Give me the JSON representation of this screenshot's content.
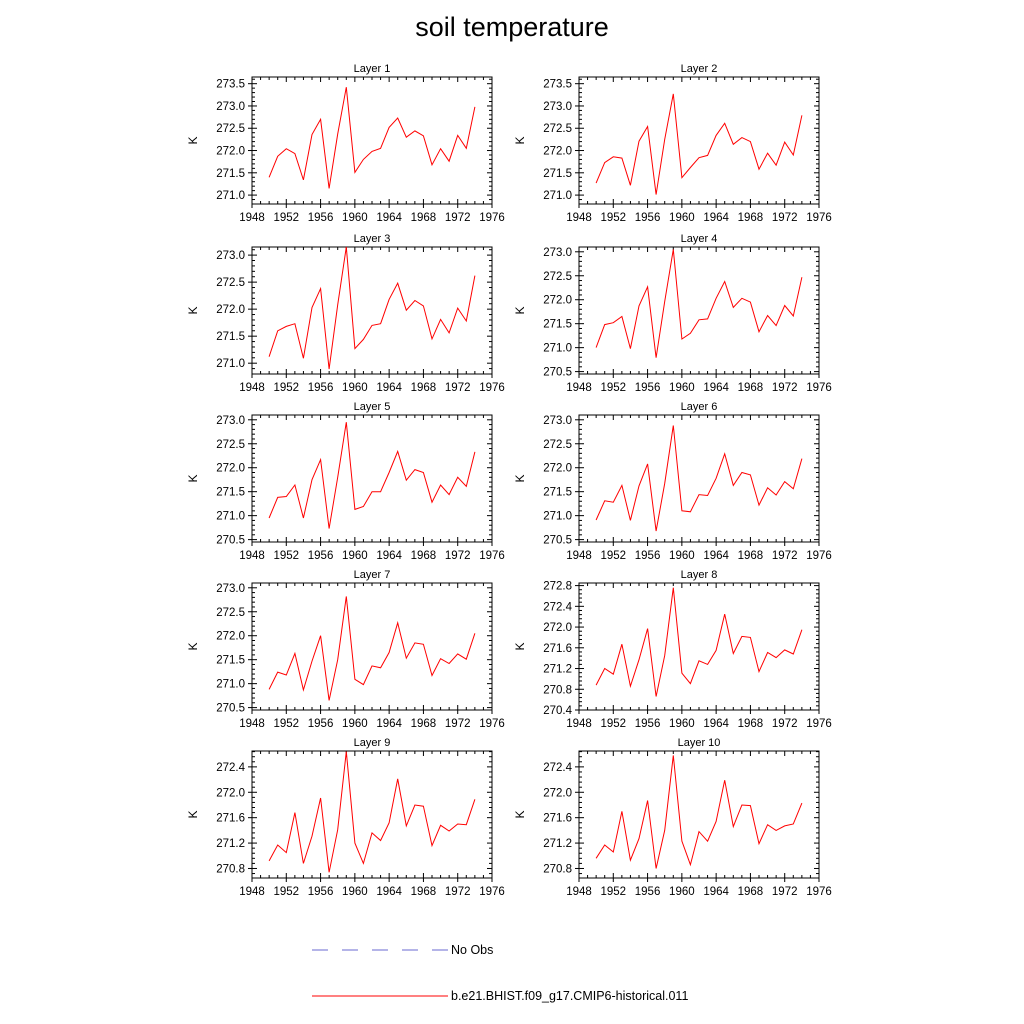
{
  "title": "soil temperature",
  "legend": [
    {
      "label": "No Obs",
      "color": "#6a6ad0",
      "style": "dashed"
    },
    {
      "label": "b.e21.BHIST.f09_g17.CMIP6-historical.011",
      "color": "#ff0000",
      "style": "solid"
    }
  ],
  "chart_data": [
    {
      "type": "line",
      "title": "Layer 1",
      "ylabel": "K",
      "xlim": [
        1948,
        1976
      ],
      "ylim": [
        270.8,
        273.65
      ],
      "xticks": [
        "1948",
        "1952",
        "1956",
        "1960",
        "1964",
        "1968",
        "1972",
        "1976"
      ],
      "yticks": [
        "271.0",
        "271.5",
        "272.0",
        "272.5",
        "273.0",
        "273.5"
      ],
      "series": [
        {
          "x": [
            1950,
            1951,
            1952,
            1953,
            1954,
            1955,
            1956,
            1957,
            1958,
            1959,
            1960,
            1961,
            1962,
            1963,
            1964,
            1965,
            1966,
            1967,
            1968,
            1969,
            1970,
            1971,
            1972,
            1973,
            1974
          ],
          "y": [
            271.4,
            271.87,
            272.04,
            271.93,
            271.34,
            272.36,
            272.7,
            271.15,
            272.37,
            273.42,
            271.51,
            271.8,
            271.98,
            272.05,
            272.52,
            272.73,
            272.3,
            272.44,
            272.33,
            271.68,
            272.04,
            271.76,
            272.34,
            272.05,
            272.98
          ]
        }
      ]
    },
    {
      "type": "line",
      "title": "Layer 2",
      "ylabel": "K",
      "xlim": [
        1948,
        1976
      ],
      "ylim": [
        270.8,
        273.65
      ],
      "xticks": [
        "1948",
        "1952",
        "1956",
        "1960",
        "1964",
        "1968",
        "1972",
        "1976"
      ],
      "yticks": [
        "271.0",
        "271.5",
        "272.0",
        "272.5",
        "273.0",
        "273.5"
      ],
      "series": [
        {
          "x": [
            1950,
            1951,
            1952,
            1953,
            1954,
            1955,
            1956,
            1957,
            1958,
            1959,
            1960,
            1961,
            1962,
            1963,
            1964,
            1965,
            1966,
            1967,
            1968,
            1969,
            1970,
            1971,
            1972,
            1973,
            1974
          ],
          "y": [
            271.27,
            271.73,
            271.86,
            271.83,
            271.22,
            272.21,
            272.54,
            271.01,
            272.25,
            273.27,
            271.39,
            271.62,
            271.84,
            271.89,
            272.34,
            272.61,
            272.14,
            272.29,
            272.2,
            271.58,
            271.94,
            271.67,
            272.19,
            271.9,
            272.79
          ]
        }
      ]
    },
    {
      "type": "line",
      "title": "Layer 3",
      "ylabel": "K",
      "xlim": [
        1948,
        1976
      ],
      "ylim": [
        270.8,
        273.15
      ],
      "xticks": [
        "1948",
        "1952",
        "1956",
        "1960",
        "1964",
        "1968",
        "1972",
        "1976"
      ],
      "yticks": [
        "271.0",
        "271.5",
        "272.0",
        "272.5",
        "273.0"
      ],
      "series": [
        {
          "x": [
            1950,
            1951,
            1952,
            1953,
            1954,
            1955,
            1956,
            1957,
            1958,
            1959,
            1960,
            1961,
            1962,
            1963,
            1964,
            1965,
            1966,
            1967,
            1968,
            1969,
            1970,
            1971,
            1972,
            1973,
            1974
          ],
          "y": [
            271.12,
            271.6,
            271.68,
            271.73,
            271.09,
            272.03,
            272.38,
            270.89,
            272.08,
            273.15,
            271.27,
            271.44,
            271.7,
            271.73,
            272.18,
            272.48,
            271.98,
            272.16,
            272.06,
            271.45,
            271.81,
            271.56,
            272.02,
            271.78,
            272.62
          ]
        }
      ]
    },
    {
      "type": "line",
      "title": "Layer 4",
      "ylabel": "K",
      "xlim": [
        1948,
        1976
      ],
      "ylim": [
        270.45,
        273.1
      ],
      "xticks": [
        "1948",
        "1952",
        "1956",
        "1960",
        "1964",
        "1968",
        "1972",
        "1976"
      ],
      "yticks": [
        "270.5",
        "271.0",
        "271.5",
        "272.0",
        "272.5",
        "273.0"
      ],
      "series": [
        {
          "x": [
            1950,
            1951,
            1952,
            1953,
            1954,
            1955,
            1956,
            1957,
            1958,
            1959,
            1960,
            1961,
            1962,
            1963,
            1964,
            1965,
            1966,
            1967,
            1968,
            1969,
            1970,
            1971,
            1972,
            1973,
            1974
          ],
          "y": [
            271.0,
            271.48,
            271.52,
            271.65,
            270.98,
            271.87,
            272.27,
            270.79,
            271.96,
            273.05,
            271.18,
            271.3,
            271.58,
            271.6,
            272.03,
            272.38,
            271.84,
            272.03,
            271.95,
            271.33,
            271.67,
            271.46,
            271.88,
            271.66,
            272.47
          ]
        }
      ]
    },
    {
      "type": "line",
      "title": "Layer 5",
      "ylabel": "K",
      "xlim": [
        1948,
        1976
      ],
      "ylim": [
        270.45,
        273.1
      ],
      "xticks": [
        "1948",
        "1952",
        "1956",
        "1960",
        "1964",
        "1968",
        "1972",
        "1976"
      ],
      "yticks": [
        "270.5",
        "271.0",
        "271.5",
        "272.0",
        "272.5",
        "273.0"
      ],
      "series": [
        {
          "x": [
            1950,
            1951,
            1952,
            1953,
            1954,
            1955,
            1956,
            1957,
            1958,
            1959,
            1960,
            1961,
            1962,
            1963,
            1964,
            1965,
            1966,
            1967,
            1968,
            1969,
            1970,
            1971,
            1972,
            1973,
            1974
          ],
          "y": [
            270.95,
            271.38,
            271.4,
            271.64,
            270.95,
            271.75,
            272.17,
            270.73,
            271.8,
            272.95,
            271.13,
            271.19,
            271.5,
            271.5,
            271.9,
            272.34,
            271.74,
            271.96,
            271.9,
            271.28,
            271.64,
            271.44,
            271.8,
            271.61,
            272.33
          ]
        }
      ]
    },
    {
      "type": "line",
      "title": "Layer 6",
      "ylabel": "K",
      "xlim": [
        1948,
        1976
      ],
      "ylim": [
        270.45,
        273.1
      ],
      "xticks": [
        "1948",
        "1952",
        "1956",
        "1960",
        "1964",
        "1968",
        "1972",
        "1976"
      ],
      "yticks": [
        "270.5",
        "271.0",
        "271.5",
        "272.0",
        "272.5",
        "273.0"
      ],
      "series": [
        {
          "x": [
            1950,
            1951,
            1952,
            1953,
            1954,
            1955,
            1956,
            1957,
            1958,
            1959,
            1960,
            1961,
            1962,
            1963,
            1964,
            1965,
            1966,
            1967,
            1968,
            1969,
            1970,
            1971,
            1972,
            1973,
            1974
          ],
          "y": [
            270.91,
            271.31,
            271.28,
            271.63,
            270.9,
            271.62,
            272.08,
            270.68,
            271.67,
            272.88,
            271.1,
            271.08,
            271.44,
            271.42,
            271.78,
            272.29,
            271.63,
            271.9,
            271.85,
            271.22,
            271.58,
            271.43,
            271.71,
            271.56,
            272.19
          ]
        }
      ]
    },
    {
      "type": "line",
      "title": "Layer 7",
      "ylabel": "K",
      "xlim": [
        1948,
        1976
      ],
      "ylim": [
        270.45,
        273.1
      ],
      "xticks": [
        "1948",
        "1952",
        "1956",
        "1960",
        "1964",
        "1968",
        "1972",
        "1976"
      ],
      "yticks": [
        "270.5",
        "271.0",
        "271.5",
        "272.0",
        "272.5",
        "273.0"
      ],
      "series": [
        {
          "x": [
            1950,
            1951,
            1952,
            1953,
            1954,
            1955,
            1956,
            1957,
            1958,
            1959,
            1960,
            1961,
            1962,
            1963,
            1964,
            1965,
            1966,
            1967,
            1968,
            1969,
            1970,
            1971,
            1972,
            1973,
            1974
          ],
          "y": [
            270.88,
            271.24,
            271.18,
            271.63,
            270.87,
            271.47,
            272.0,
            270.65,
            271.5,
            272.82,
            271.09,
            270.98,
            271.37,
            271.33,
            271.65,
            272.27,
            271.53,
            271.85,
            271.82,
            271.17,
            271.52,
            271.42,
            271.62,
            271.51,
            272.05
          ]
        }
      ]
    },
    {
      "type": "line",
      "title": "Layer 8",
      "ylabel": "K",
      "xlim": [
        1948,
        1976
      ],
      "ylim": [
        270.4,
        272.85
      ],
      "xticks": [
        "1948",
        "1952",
        "1956",
        "1960",
        "1964",
        "1968",
        "1972",
        "1976"
      ],
      "yticks": [
        "270.4",
        "270.8",
        "271.2",
        "271.6",
        "272.0",
        "272.4",
        "272.8"
      ],
      "series": [
        {
          "x": [
            1950,
            1951,
            1952,
            1953,
            1954,
            1955,
            1956,
            1957,
            1958,
            1959,
            1960,
            1961,
            1962,
            1963,
            1964,
            1965,
            1966,
            1967,
            1968,
            1969,
            1970,
            1971,
            1972,
            1973,
            1974
          ],
          "y": [
            270.88,
            271.2,
            271.09,
            271.67,
            270.86,
            271.37,
            271.97,
            270.66,
            271.45,
            272.76,
            271.11,
            270.91,
            271.35,
            271.28,
            271.55,
            272.25,
            271.49,
            271.82,
            271.8,
            271.14,
            271.51,
            271.41,
            271.56,
            271.48,
            271.95
          ]
        }
      ]
    },
    {
      "type": "line",
      "title": "Layer 9",
      "ylabel": "K",
      "xlim": [
        1948,
        1976
      ],
      "ylim": [
        270.65,
        272.65
      ],
      "xticks": [
        "1948",
        "1952",
        "1956",
        "1960",
        "1964",
        "1968",
        "1972",
        "1976"
      ],
      "yticks": [
        "270.8",
        "271.2",
        "271.6",
        "272.0",
        "272.4"
      ],
      "series": [
        {
          "x": [
            1950,
            1951,
            1952,
            1953,
            1954,
            1955,
            1956,
            1957,
            1958,
            1959,
            1960,
            1961,
            1962,
            1963,
            1964,
            1965,
            1966,
            1967,
            1968,
            1969,
            1970,
            1971,
            1972,
            1973,
            1974
          ],
          "y": [
            270.92,
            271.17,
            271.05,
            271.68,
            270.88,
            271.31,
            271.91,
            270.74,
            271.41,
            272.64,
            271.2,
            270.88,
            271.36,
            271.24,
            271.52,
            272.21,
            271.47,
            271.8,
            271.78,
            271.16,
            271.48,
            271.39,
            271.5,
            271.49,
            271.89
          ]
        }
      ]
    },
    {
      "type": "line",
      "title": "Layer 10",
      "ylabel": "K",
      "xlim": [
        1948,
        1976
      ],
      "ylim": [
        270.65,
        272.65
      ],
      "xticks": [
        "1948",
        "1952",
        "1956",
        "1960",
        "1964",
        "1968",
        "1972",
        "1976"
      ],
      "yticks": [
        "270.8",
        "271.2",
        "271.6",
        "272.0",
        "272.4"
      ],
      "series": [
        {
          "x": [
            1950,
            1951,
            1952,
            1953,
            1954,
            1955,
            1956,
            1957,
            1958,
            1959,
            1960,
            1961,
            1962,
            1963,
            1964,
            1965,
            1966,
            1967,
            1968,
            1969,
            1970,
            1971,
            1972,
            1973,
            1974
          ],
          "y": [
            270.96,
            271.17,
            271.06,
            271.7,
            270.93,
            271.27,
            271.87,
            270.8,
            271.4,
            272.58,
            271.23,
            270.86,
            271.38,
            271.23,
            271.54,
            272.19,
            271.46,
            271.8,
            271.79,
            271.19,
            271.49,
            271.4,
            271.47,
            271.5,
            271.83
          ]
        }
      ]
    }
  ]
}
